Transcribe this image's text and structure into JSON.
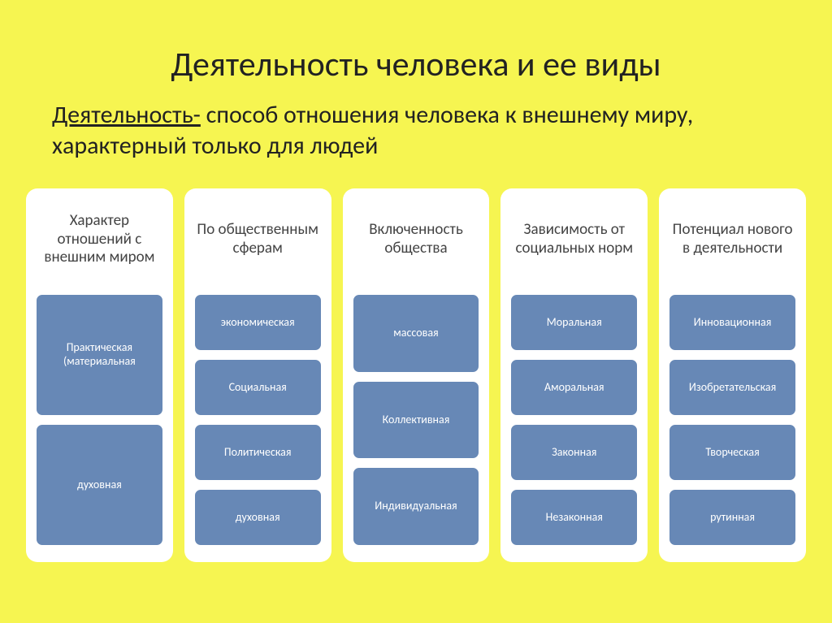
{
  "background_color": "#f6f551",
  "item_bg_color": "#6788b6",
  "column_bg_color": "#ffffff",
  "title": "Деятельность человека и ее виды",
  "subtitle_term": "Деятельность-",
  "subtitle_rest": " способ отношения человека к внешнему миру, характерный только для людей",
  "columns": [
    {
      "header": "Характер отношений с внешним миром",
      "items": [
        "Практическая (материальная",
        "духовная"
      ]
    },
    {
      "header": "По общественным сферам",
      "items": [
        "экономическая",
        "Социальная",
        "Политическая",
        "духовная"
      ]
    },
    {
      "header": "Включенность общества",
      "items": [
        "массовая",
        "Коллективная",
        "Индивидуальная"
      ]
    },
    {
      "header": "Зависимость от социальных норм",
      "items": [
        "Моральная",
        "Аморальная",
        "Законная",
        "Незаконная"
      ]
    },
    {
      "header": "Потенциал нового в деятельности",
      "items": [
        "Инновационная",
        "Изобретательская",
        "Творческая",
        "рутинная"
      ]
    }
  ]
}
